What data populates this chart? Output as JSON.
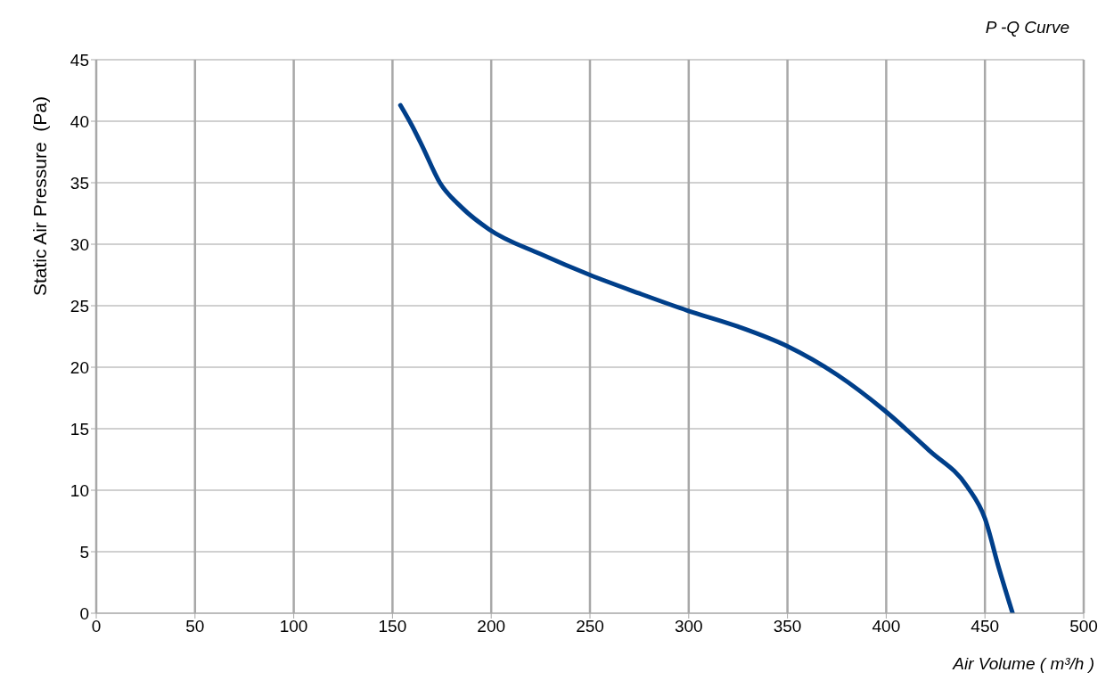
{
  "chart_data": {
    "type": "line",
    "title": "P -Q Curve",
    "xlabel": "Air Volume ( m³/h )",
    "ylabel": "Static Air Pressure  (Pa)",
    "x": [
      154,
      160,
      165,
      174,
      185,
      199,
      225,
      250,
      275,
      299.5,
      325,
      350,
      375,
      399,
      422,
      441,
      450,
      457,
      464
    ],
    "series": [
      {
        "color": "#003f8a",
        "values": [
          41.3,
          39.6,
          38,
          35,
          33,
          31.2,
          29.2,
          27.5,
          26,
          24.6,
          23.3,
          21.7,
          19.4,
          16.5,
          13.2,
          10.3,
          7.7,
          3.7,
          0
        ]
      }
    ],
    "xlim": [
      0,
      500
    ],
    "xticks": [
      0,
      50,
      100,
      150,
      200,
      250,
      300,
      350,
      400,
      450,
      500
    ],
    "ylim": [
      0,
      45
    ],
    "yticks": [
      0,
      5,
      10,
      15,
      20,
      25,
      30,
      35,
      40,
      45
    ],
    "grid": true,
    "marker": "none",
    "line_style": "solid",
    "legend": false
  }
}
